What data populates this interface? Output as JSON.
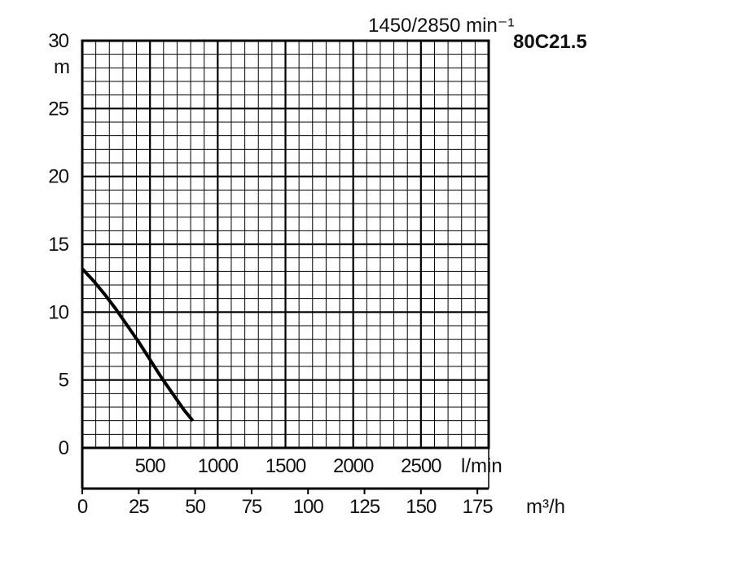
{
  "chart_data": {
    "type": "line",
    "speed_label": "1450/2850 min⁻¹",
    "model_label": "80C21.5",
    "y_unit": "m",
    "y_ticks": [
      "0",
      "5",
      "10",
      "15",
      "20",
      "25",
      "30"
    ],
    "ylim": [
      0,
      30
    ],
    "lpm_unit": "l/min",
    "lpm_ticks": [
      "500",
      "1000",
      "1500",
      "2000",
      "2500"
    ],
    "x_unit": "m³/h",
    "x_ticks": [
      "0",
      "25",
      "50",
      "75",
      "100",
      "125",
      "150",
      "175"
    ],
    "xlim": [
      0,
      180
    ],
    "grid": true,
    "series": [
      {
        "x": [
          0,
          5,
          10,
          15,
          20,
          25,
          30,
          35,
          40,
          45,
          49
        ],
        "y": [
          13.2,
          12.3,
          11.3,
          10.2,
          9.0,
          7.8,
          6.5,
          5.2,
          4.0,
          2.8,
          2.0
        ]
      }
    ]
  }
}
